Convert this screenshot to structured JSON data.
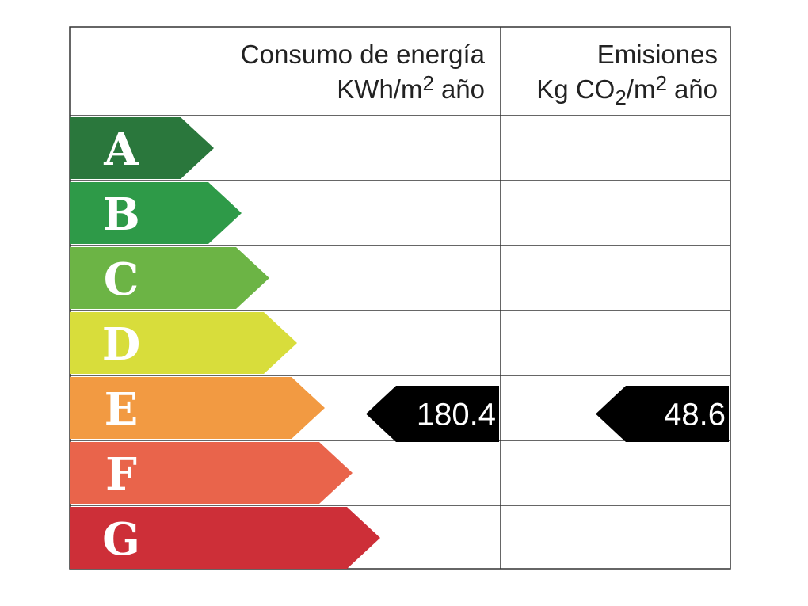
{
  "header": {
    "consumption": {
      "title": "Consumo de energía",
      "unit": [
        "KWh/m",
        "2",
        "año"
      ]
    },
    "emissions": {
      "title": "Emisiones",
      "unit": [
        "Kg CO",
        "2",
        "/m",
        "2",
        "año"
      ]
    }
  },
  "rows": [
    {
      "letter": "A",
      "color": "#2a773c"
    },
    {
      "letter": "B",
      "color": "#2e9a48"
    },
    {
      "letter": "C",
      "color": "#6cb445"
    },
    {
      "letter": "D",
      "color": "#d8dd3b"
    },
    {
      "letter": "E",
      "color": "#f29a42",
      "consumption": 180.4,
      "emissions": 48.6
    },
    {
      "letter": "F",
      "color": "#e9644b",
      "consumption": null,
      "emissions": null
    },
    {
      "letter": "G",
      "color": "#cd2f38"
    }
  ]
}
